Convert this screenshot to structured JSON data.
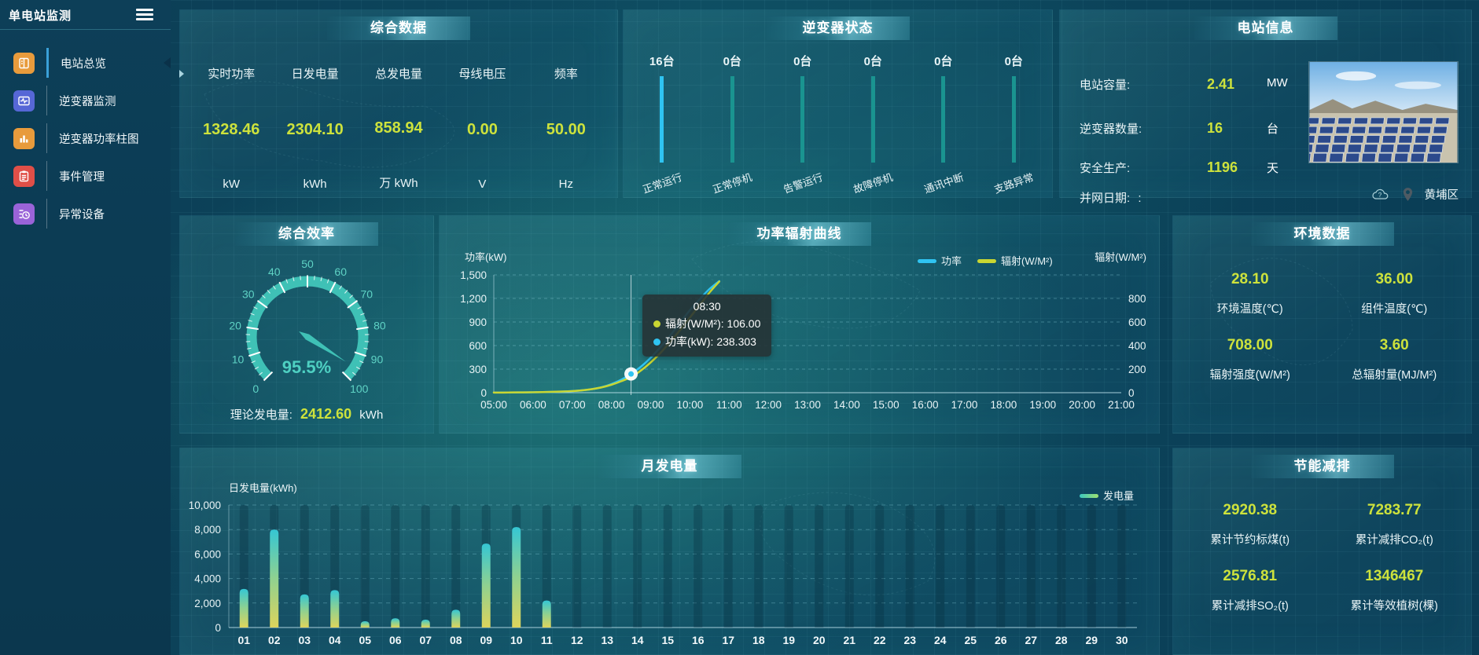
{
  "sidebar": {
    "title": "单电站监测",
    "menu": [
      {
        "label": "电站总览",
        "active": true
      },
      {
        "label": "逆变器监测",
        "active": false
      },
      {
        "label": "逆变器功率柱图",
        "active": false
      },
      {
        "label": "事件管理",
        "active": false
      },
      {
        "label": "异常设备",
        "active": false
      }
    ]
  },
  "summary": {
    "title": "综合数据",
    "metrics": [
      {
        "label": "实时功率",
        "value": "1328.46",
        "unit": "kW"
      },
      {
        "label": "日发电量",
        "value": "2304.10",
        "unit": "kWh"
      },
      {
        "label": "总发电量",
        "value": "858.94",
        "unit": "万 kWh"
      },
      {
        "label": "母线电压",
        "value": "0.00",
        "unit": "V"
      },
      {
        "label": "频率",
        "value": "50.00",
        "unit": "Hz"
      }
    ]
  },
  "inverter_status": {
    "title": "逆变器状态",
    "items": [
      {
        "count": "16台",
        "label": "正常运行",
        "highlight": true
      },
      {
        "count": "0台",
        "label": "正常停机",
        "highlight": false
      },
      {
        "count": "0台",
        "label": "告警运行",
        "highlight": false
      },
      {
        "count": "0台",
        "label": "故障停机",
        "highlight": false
      },
      {
        "count": "0台",
        "label": "通讯中断",
        "highlight": false
      },
      {
        "count": "0台",
        "label": "支路异常",
        "highlight": false
      }
    ]
  },
  "station_info": {
    "title": "电站信息",
    "rows": [
      {
        "label": "电站容量:",
        "value": "2.41",
        "unit": "MW"
      },
      {
        "label": "逆变器数量:",
        "value": "16",
        "unit": "台"
      },
      {
        "label": "安全生产:",
        "value": "1196",
        "unit": "天"
      },
      {
        "label": "并网日期: ",
        "value": ":",
        "unit": ""
      }
    ],
    "location": "黄埔区"
  },
  "efficiency": {
    "title": "综合效率",
    "value_text": "95.5%",
    "footer_label": "理论发电量:",
    "footer_value": "2412.60",
    "footer_unit": "kWh"
  },
  "power_radiation": {
    "title": "功率辐射曲线",
    "left_axis_name": "功率(kW)",
    "right_axis_name": "辐射(W/M²)",
    "legend": [
      "功率",
      "辐射(W/M²)"
    ]
  },
  "environment": {
    "title": "环境数据",
    "metrics": [
      {
        "value": "28.10",
        "label": "环境温度(℃)"
      },
      {
        "value": "36.00",
        "label": "组件温度(℃)"
      },
      {
        "value": "708.00",
        "label": "辐射强度(W/M²)"
      },
      {
        "value": "3.60",
        "label": "总辐射量(MJ/M²)"
      }
    ]
  },
  "monthly": {
    "title": "月发电量",
    "ylabel": "日发电量(kWh)",
    "legend": "发电量"
  },
  "energy_saving": {
    "title": "节能减排",
    "metrics": [
      {
        "value": "2920.38",
        "label": "累计节约标煤(t)"
      },
      {
        "value": "7283.77",
        "label": "累计减排CO₂(t)"
      },
      {
        "value": "2576.81",
        "label": "累计减排SO₂(t)"
      },
      {
        "value": "1346467",
        "label": "累计等效植树(棵)"
      }
    ]
  },
  "colors": {
    "accent_value": "#cde23c",
    "power_line": "#2fc4f2",
    "radiation_line": "#c9d632",
    "gauge": "#3fc1b6",
    "status_active_bar": "#2fc4f2",
    "status_idle_bar": "#1a9490"
  },
  "chart_data": [
    {
      "id": "efficiency-gauge",
      "type": "gauge",
      "title": "综合效率",
      "min": 0,
      "max": 100,
      "value": 95.5,
      "display": "95.5%",
      "labels": [
        0,
        10,
        20,
        30,
        40,
        50,
        60,
        70,
        80,
        90,
        100
      ],
      "color": "#3fc1b6",
      "start_angle": 225,
      "end_angle": -45
    },
    {
      "id": "power-radiation",
      "type": "line",
      "title": "功率辐射曲线",
      "x": [
        "05:00",
        "05:15",
        "05:30",
        "05:45",
        "06:00",
        "06:15",
        "06:30",
        "06:45",
        "07:00",
        "07:15",
        "07:30",
        "07:45",
        "08:00",
        "08:15",
        "08:30",
        "08:45",
        "09:00",
        "09:15",
        "09:30",
        "09:45",
        "10:00",
        "10:15",
        "10:30",
        "10:45"
      ],
      "x_axis_ticks": [
        "05:00",
        "06:00",
        "07:00",
        "08:00",
        "09:00",
        "10:00",
        "11:00",
        "12:00",
        "13:00",
        "14:00",
        "15:00",
        "16:00",
        "17:00",
        "18:00",
        "19:00",
        "20:00",
        "21:00"
      ],
      "x_range_hours": [
        5,
        21
      ],
      "series": [
        {
          "name": "功率",
          "axis": "left",
          "color": "#2fc4f2",
          "values": [
            2,
            2,
            3,
            4,
            5,
            7,
            10,
            14,
            20,
            30,
            45,
            70,
            110,
            165,
            238.3,
            330,
            445,
            580,
            730,
            890,
            1050,
            1190,
            1320,
            1420
          ]
        },
        {
          "name": "辐射(W/M²)",
          "axis": "right",
          "color": "#c9d632",
          "values": [
            1,
            1,
            2,
            2,
            3,
            4,
            6,
            8,
            11,
            16,
            24,
            36,
            54,
            78,
            106,
            150,
            205,
            270,
            345,
            425,
            510,
            595,
            680,
            755
          ]
        }
      ],
      "left_axis": {
        "name": "功率(kW)",
        "min": 0,
        "max": 1500,
        "ticks": [
          "0",
          "300",
          "600",
          "900",
          "1,200",
          "1,500"
        ]
      },
      "right_axis": {
        "name": "辐射(W/M²)",
        "min": 0,
        "max": 800,
        "ticks": [
          "0",
          "200",
          "400",
          "600",
          "800"
        ]
      },
      "tooltip": {
        "time": "08:30",
        "x_index": 14,
        "rows": [
          {
            "name": "辐射(W/M²)",
            "value": "106.00",
            "color": "#c9d632"
          },
          {
            "name": "功率(kW)",
            "value": "238.303",
            "color": "#2fc4f2"
          }
        ]
      }
    },
    {
      "id": "monthly-energy",
      "type": "bar",
      "title": "月发电量",
      "categories": [
        "01",
        "02",
        "03",
        "04",
        "05",
        "06",
        "07",
        "08",
        "09",
        "10",
        "11",
        "12",
        "13",
        "14",
        "15",
        "16",
        "17",
        "18",
        "19",
        "20",
        "21",
        "22",
        "23",
        "24",
        "25",
        "26",
        "27",
        "28",
        "29",
        "30"
      ],
      "values": [
        3150,
        8000,
        2700,
        3050,
        510,
        750,
        640,
        1450,
        6850,
        8200,
        2200,
        0,
        0,
        0,
        0,
        0,
        0,
        0,
        0,
        0,
        0,
        0,
        0,
        0,
        0,
        0,
        0,
        0,
        0,
        0
      ],
      "ylabel": "日发电量(kWh)",
      "ylim": [
        0,
        10000
      ],
      "yticks": [
        "0",
        "2,000",
        "4,000",
        "6,000",
        "8,000",
        "10,000"
      ],
      "legend": "发电量",
      "gradient": [
        "#ddd45c",
        "#8fd190",
        "#35c6d4"
      ]
    }
  ]
}
